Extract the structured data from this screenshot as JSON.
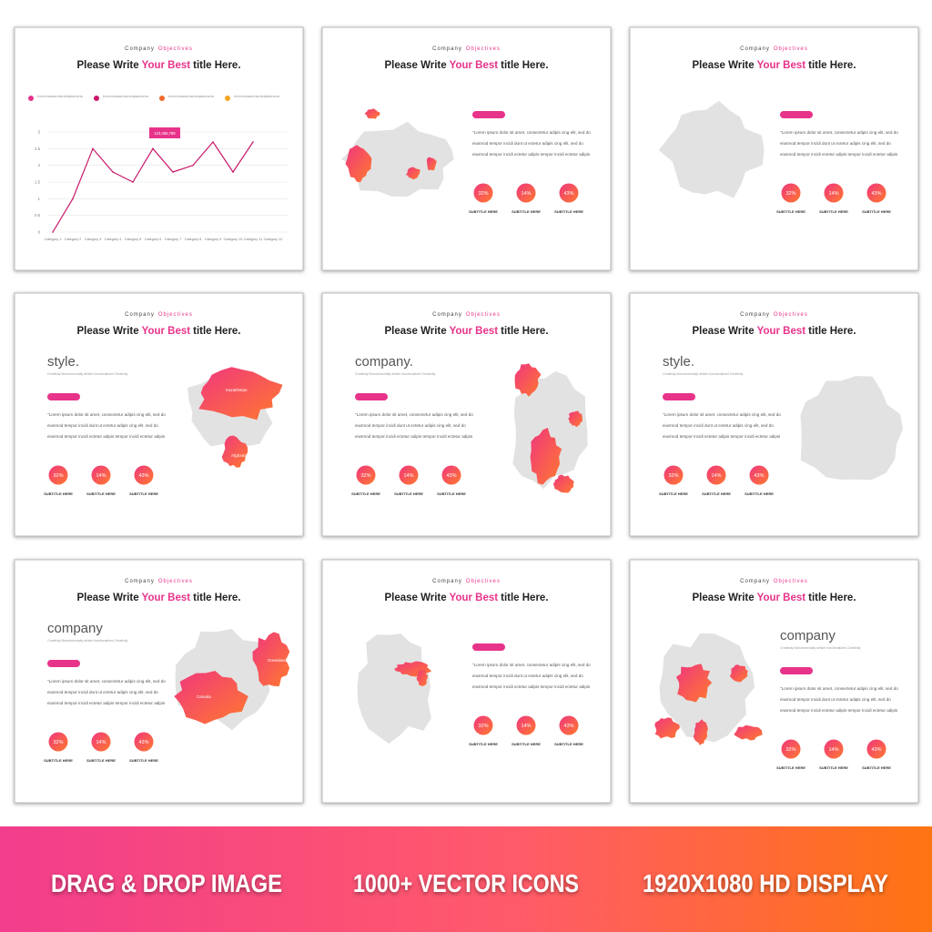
{
  "template": {
    "kicker": [
      "Company",
      "Objectives"
    ],
    "title": [
      "Please Write",
      "Your Best",
      "title Here."
    ],
    "body": [
      "\"Lorem ipsum dolor sit amet, consectetur adipis cing elit, sed do",
      "eiusmod tempor incidi dunt ut ectetur adipis cing elit, sed do",
      "eiusmod tempor incidi ectetur adipis tempor incidi ectetur adipis"
    ],
    "stats": [
      "32%",
      "14%",
      "43%"
    ],
    "subtitle": "SUBTITLE HERE"
  },
  "chart_slide": {
    "legend": [
      "At vero eos et accusamus et iusto odio dignissimos duci mus",
      "At vero eos et accusamus et iusto odio dignissimos duci mus",
      "At vero eos et accusamus et iusto odio dignissimos duci mus",
      "At vero eos et accusamus et iusto odio dignissimos duci mus"
    ],
    "legend_colors": [
      "#e8338a",
      "#c8186a",
      "#f26a2e",
      "#f5a623"
    ],
    "categories": [
      "Category 1",
      "Category 2",
      "Category 3",
      "Category 4",
      "Category 5",
      "Category 6",
      "Category 7",
      "Category 8",
      "Category 9",
      "Category 10",
      "Category 11",
      "Category 12"
    ],
    "values": [
      0,
      1,
      2.5,
      1.8,
      1.5,
      2.5,
      1.8,
      2,
      2.7,
      1.8,
      2.7,
      null
    ],
    "color": "#c8186a",
    "ylim": [
      0,
      3
    ],
    "yticks": [
      0,
      0.5,
      1,
      1.5,
      2,
      2.5,
      3
    ],
    "annotation": "123,456,789"
  },
  "heading_slides": [
    {
      "heading": "style.",
      "tagline": "Creativity Monotonectally deliver functionalized Creativity",
      "map_labels": [
        "Kazakhstan",
        "Afghanistan"
      ]
    },
    {
      "heading": "company.",
      "tagline": "Creativity Monotonectally deliver functionalized Creativity"
    },
    {
      "heading": "style.",
      "tagline": "Creativity Monotonectally deliver functionalized Creativity"
    },
    {
      "heading": "company",
      "tagline": "Creativity Monotonectally deliver functionalized Creativity",
      "map_labels": [
        "Canada",
        "Greenland"
      ]
    },
    {
      "heading": "company",
      "tagline": "Creativity Monotonectally deliver functionalized Creativity"
    }
  ],
  "banner": [
    "DRAG & DROP IMAGE",
    "1000+ VECTOR ICONS",
    "1920X1080 HD DISPLAY"
  ]
}
